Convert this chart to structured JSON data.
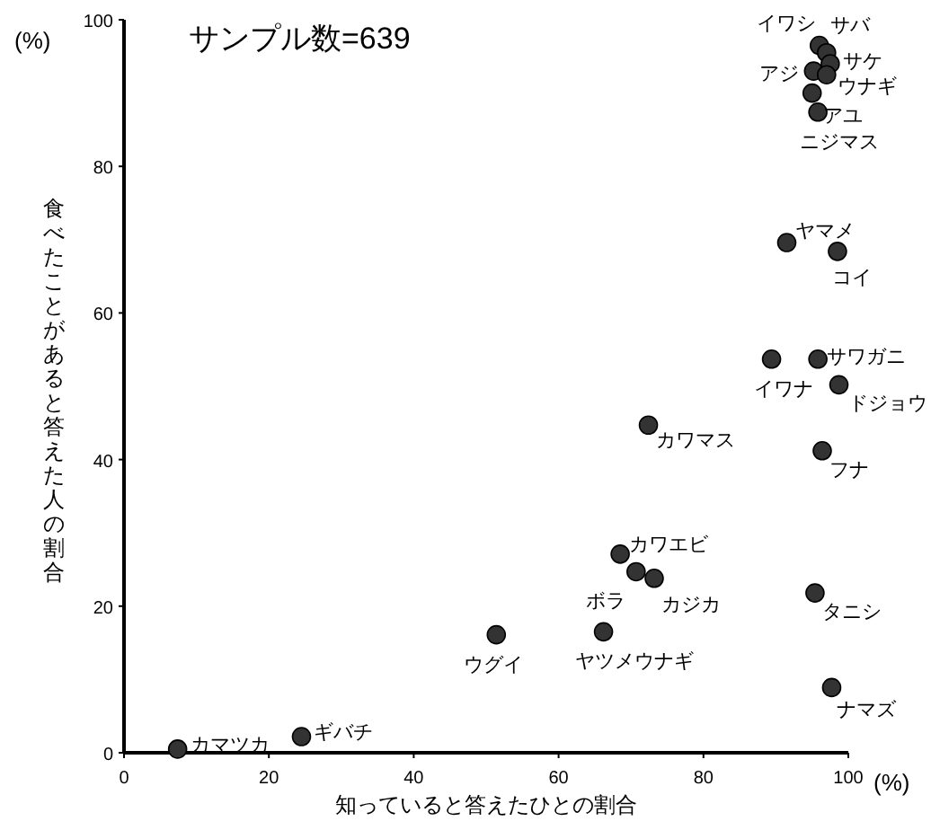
{
  "chart_data": {
    "type": "scatter",
    "title": "サンプル数=639",
    "xlabel": "知っていると答えたひとの割合",
    "ylabel": "食べたことがあると答えた人の割合",
    "xlim": [
      0,
      100
    ],
    "ylim": [
      0,
      100
    ],
    "xticks": [
      0,
      20,
      40,
      60,
      80,
      100
    ],
    "yticks": [
      0,
      20,
      40,
      60,
      80,
      100
    ],
    "grid": false,
    "marker": "circle",
    "series": [
      {
        "color": "#333333",
        "x": [
          96,
          97,
          95.2,
          97.5,
          97,
          95,
          95.8,
          91.5,
          98.5,
          89.4,
          95.8,
          98.7,
          96.4,
          72.4,
          68.5,
          70.7,
          73.2,
          95.4,
          51.4,
          66.2,
          97.7,
          7.4,
          24.5
        ],
        "values": [
          96.5,
          95.5,
          93,
          94,
          92.5,
          90,
          87.4,
          69.6,
          68.4,
          53.7,
          53.7,
          50.2,
          41.2,
          44.7,
          27.1,
          24.7,
          23.8,
          21.8,
          16.1,
          16.5,
          8.9,
          0.5,
          2.2
        ]
      }
    ],
    "annotations": [
      "(%)",
      "(%)",
      {
        "text": "イワシ",
        "x": 96,
        "y": 96.5
      },
      {
        "text": "サバ",
        "x": 97,
        "y": 95.5
      },
      {
        "text": "アジ",
        "x": 95.2,
        "y": 93
      },
      {
        "text": "サケ",
        "x": 97.5,
        "y": 94
      },
      {
        "text": "ウナギ",
        "x": 97,
        "y": 92.5
      },
      {
        "text": "アユ",
        "x": 95,
        "y": 90
      },
      {
        "text": "ニジマス",
        "x": 95.8,
        "y": 87.4
      },
      {
        "text": "ヤマメ",
        "x": 91.5,
        "y": 69.6
      },
      {
        "text": "コイ",
        "x": 98.5,
        "y": 68.4
      },
      {
        "text": "イワナ",
        "x": 89.4,
        "y": 53.7
      },
      {
        "text": "サワガニ",
        "x": 95.8,
        "y": 53.7
      },
      {
        "text": "ドジョウ",
        "x": 98.7,
        "y": 50.2
      },
      {
        "text": "フナ",
        "x": 96.4,
        "y": 41.2
      },
      {
        "text": "カワマス",
        "x": 72.4,
        "y": 44.7
      },
      {
        "text": "カワエビ",
        "x": 68.5,
        "y": 27.1
      },
      {
        "text": "ボラ",
        "x": 70.7,
        "y": 24.7
      },
      {
        "text": "カジカ",
        "x": 73.2,
        "y": 23.8
      },
      {
        "text": "タニシ",
        "x": 95.4,
        "y": 21.8
      },
      {
        "text": "ウグイ",
        "x": 51.4,
        "y": 16.1
      },
      {
        "text": "ヤツメウナギ",
        "x": 66.2,
        "y": 16.5
      },
      {
        "text": "ナマズ",
        "x": 97.7,
        "y": 8.9
      },
      {
        "text": "カマツカ",
        "x": 7.4,
        "y": 0.5
      },
      {
        "text": "ギバチ",
        "x": 24.5,
        "y": 2.2
      }
    ]
  }
}
